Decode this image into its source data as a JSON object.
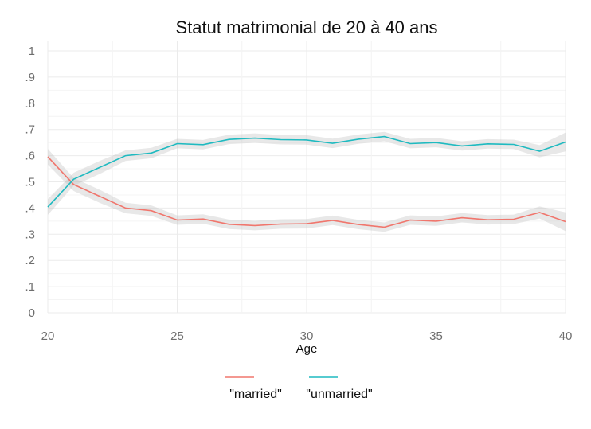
{
  "chart_data": {
    "type": "line",
    "title": "Statut matrimonial de 20 à 40 ans",
    "xlabel": "Age",
    "ylabel": "",
    "xlim": [
      20,
      40
    ],
    "ylim": [
      0,
      1
    ],
    "x_ticks": [
      20,
      25,
      30,
      35,
      40
    ],
    "x_tick_labels": [
      "20",
      "25",
      "30",
      "35",
      "40"
    ],
    "y_ticks": [
      0,
      0.1,
      0.2,
      0.3,
      0.4,
      0.5,
      0.6,
      0.7,
      0.8,
      0.9,
      1
    ],
    "y_tick_labels": [
      "0",
      ".1",
      ".2",
      ".3",
      ".4",
      ".5",
      ".6",
      ".7",
      ".8",
      ".9",
      "1"
    ],
    "grid": true,
    "legend_position": "bottom",
    "x": [
      20,
      21,
      22,
      23,
      24,
      25,
      26,
      27,
      28,
      29,
      30,
      31,
      32,
      33,
      34,
      35,
      36,
      37,
      38,
      39,
      40
    ],
    "series": [
      {
        "name": "\"married\"",
        "color": "#f0766d",
        "values": [
          0.596,
          0.49,
          0.445,
          0.4,
          0.39,
          0.354,
          0.358,
          0.338,
          0.333,
          0.339,
          0.34,
          0.353,
          0.337,
          0.327,
          0.354,
          0.35,
          0.363,
          0.355,
          0.357,
          0.383,
          0.348
        ],
        "lower": [
          0.566,
          0.465,
          0.42,
          0.38,
          0.37,
          0.336,
          0.34,
          0.32,
          0.315,
          0.321,
          0.322,
          0.335,
          0.319,
          0.309,
          0.336,
          0.332,
          0.345,
          0.337,
          0.339,
          0.36,
          0.312
        ],
        "upper": [
          0.626,
          0.515,
          0.47,
          0.42,
          0.41,
          0.372,
          0.376,
          0.356,
          0.351,
          0.357,
          0.358,
          0.371,
          0.355,
          0.345,
          0.372,
          0.368,
          0.381,
          0.373,
          0.375,
          0.406,
          0.384
        ]
      },
      {
        "name": "\"unmarried\"",
        "color": "#1fbac0",
        "values": [
          0.404,
          0.51,
          0.555,
          0.6,
          0.61,
          0.646,
          0.642,
          0.662,
          0.667,
          0.661,
          0.66,
          0.647,
          0.663,
          0.673,
          0.646,
          0.65,
          0.637,
          0.645,
          0.643,
          0.617,
          0.652
        ],
        "lower": [
          0.374,
          0.485,
          0.53,
          0.58,
          0.59,
          0.628,
          0.624,
          0.644,
          0.649,
          0.643,
          0.642,
          0.629,
          0.645,
          0.655,
          0.628,
          0.632,
          0.619,
          0.627,
          0.625,
          0.594,
          0.616
        ],
        "upper": [
          0.434,
          0.535,
          0.58,
          0.62,
          0.63,
          0.664,
          0.66,
          0.68,
          0.685,
          0.679,
          0.678,
          0.665,
          0.681,
          0.691,
          0.664,
          0.668,
          0.655,
          0.663,
          0.661,
          0.64,
          0.688
        ]
      }
    ]
  }
}
